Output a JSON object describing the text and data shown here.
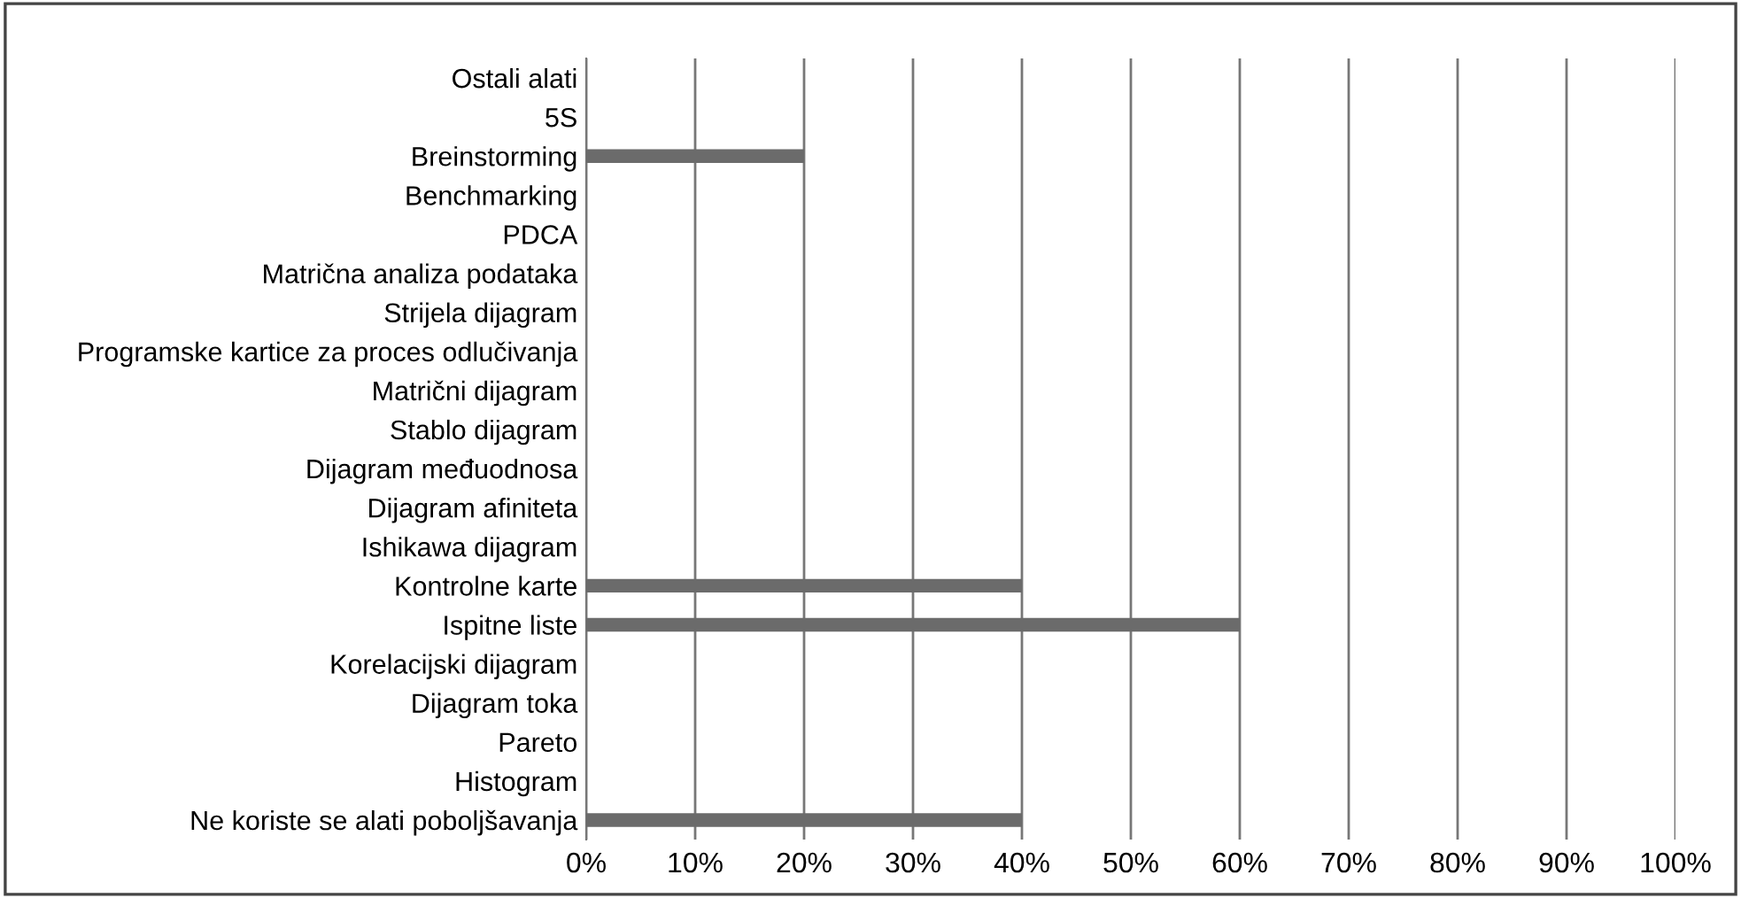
{
  "chart_data": {
    "type": "bar",
    "orientation": "horizontal",
    "categories": [
      "Ostali alati",
      "5S",
      "Breinstorming",
      "Benchmarking",
      "PDCA",
      "Matrična analiza podataka",
      "Strijela dijagram",
      "Programske kartice za proces odlučivanja",
      "Matrični dijagram",
      "Stablo dijagram",
      "Dijagram međuodnosa",
      "Dijagram afiniteta",
      "Ishikawa dijagram",
      "Kontrolne karte",
      "Ispitne liste",
      "Korelacijski dijagram",
      "Dijagram toka",
      "Pareto",
      "Histogram",
      "Ne koriste se alati poboljšavanja"
    ],
    "values": [
      0,
      0,
      20,
      0,
      0,
      0,
      0,
      0,
      0,
      0,
      0,
      0,
      0,
      40,
      60,
      0,
      0,
      0,
      0,
      40
    ],
    "color": "#6b6b6b",
    "xlim": [
      0,
      100
    ],
    "xticks": [
      {
        "value": 0,
        "label": "0%"
      },
      {
        "value": 10,
        "label": "10%"
      },
      {
        "value": 20,
        "label": "20%"
      },
      {
        "value": 30,
        "label": "30%"
      },
      {
        "value": 40,
        "label": "40%"
      },
      {
        "value": 50,
        "label": "50%"
      },
      {
        "value": 60,
        "label": "60%"
      },
      {
        "value": 70,
        "label": "70%"
      },
      {
        "value": 80,
        "label": "80%"
      },
      {
        "value": 90,
        "label": "90%"
      },
      {
        "value": 100,
        "label": "100%"
      }
    ],
    "grid": "x",
    "legend": false
  }
}
